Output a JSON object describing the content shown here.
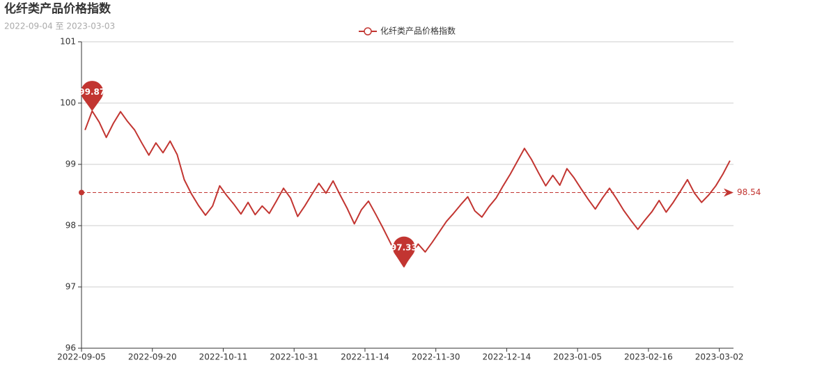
{
  "chart_data": {
    "type": "line",
    "title": "化纤类产品价格指数",
    "subtitle": "2022-09-04 至 2023-03-03",
    "categories": [
      "2022-09-05",
      null,
      null,
      null,
      null,
      null,
      null,
      null,
      null,
      null,
      "2022-09-20",
      null,
      null,
      null,
      null,
      null,
      null,
      null,
      null,
      null,
      "2022-10-11",
      null,
      null,
      null,
      null,
      null,
      null,
      null,
      null,
      null,
      "2022-10-31",
      null,
      null,
      null,
      null,
      null,
      null,
      null,
      null,
      null,
      "2022-11-14",
      null,
      null,
      null,
      null,
      null,
      null,
      null,
      null,
      null,
      "2022-11-30",
      null,
      null,
      null,
      null,
      null,
      null,
      null,
      null,
      null,
      "2022-12-14",
      null,
      null,
      null,
      null,
      null,
      null,
      null,
      null,
      null,
      "2023-01-05",
      null,
      null,
      null,
      null,
      null,
      null,
      null,
      null,
      null,
      "2023-02-16",
      null,
      null,
      null,
      null,
      null,
      null,
      null,
      null,
      null,
      "2023-03-02",
      null
    ],
    "series": [
      {
        "name": "化纤类产品价格指数",
        "color": "#c23531",
        "values": [
          99.56,
          99.87,
          99.69,
          99.44,
          99.67,
          99.86,
          99.7,
          99.56,
          99.35,
          99.15,
          99.35,
          99.19,
          99.38,
          99.16,
          98.75,
          98.52,
          98.33,
          98.17,
          98.32,
          98.65,
          98.49,
          98.35,
          98.19,
          98.38,
          98.18,
          98.32,
          98.2,
          98.4,
          98.61,
          98.45,
          98.15,
          98.32,
          98.51,
          98.69,
          98.53,
          98.73,
          98.5,
          98.28,
          98.03,
          98.26,
          98.4,
          98.19,
          97.97,
          97.74,
          97.51,
          97.33,
          97.53,
          97.7,
          97.57,
          97.73,
          97.9,
          98.07,
          98.2,
          98.34,
          98.47,
          98.24,
          98.14,
          98.31,
          98.45,
          98.65,
          98.84,
          99.05,
          99.26,
          99.08,
          98.86,
          98.65,
          98.82,
          98.66,
          98.93,
          98.78,
          98.6,
          98.43,
          98.27,
          98.45,
          98.61,
          98.44,
          98.25,
          98.09,
          97.94,
          98.09,
          98.23,
          98.41,
          98.22,
          98.38,
          98.56,
          98.75,
          98.53,
          98.38,
          98.5,
          98.65,
          98.84,
          99.06
        ]
      }
    ],
    "mark_points": [
      99.87,
      97.33
    ],
    "mark_line": 98.54,
    "ylim": [
      96,
      101
    ],
    "yticks": [
      96,
      97,
      98,
      99,
      100,
      101
    ],
    "grid": true
  }
}
